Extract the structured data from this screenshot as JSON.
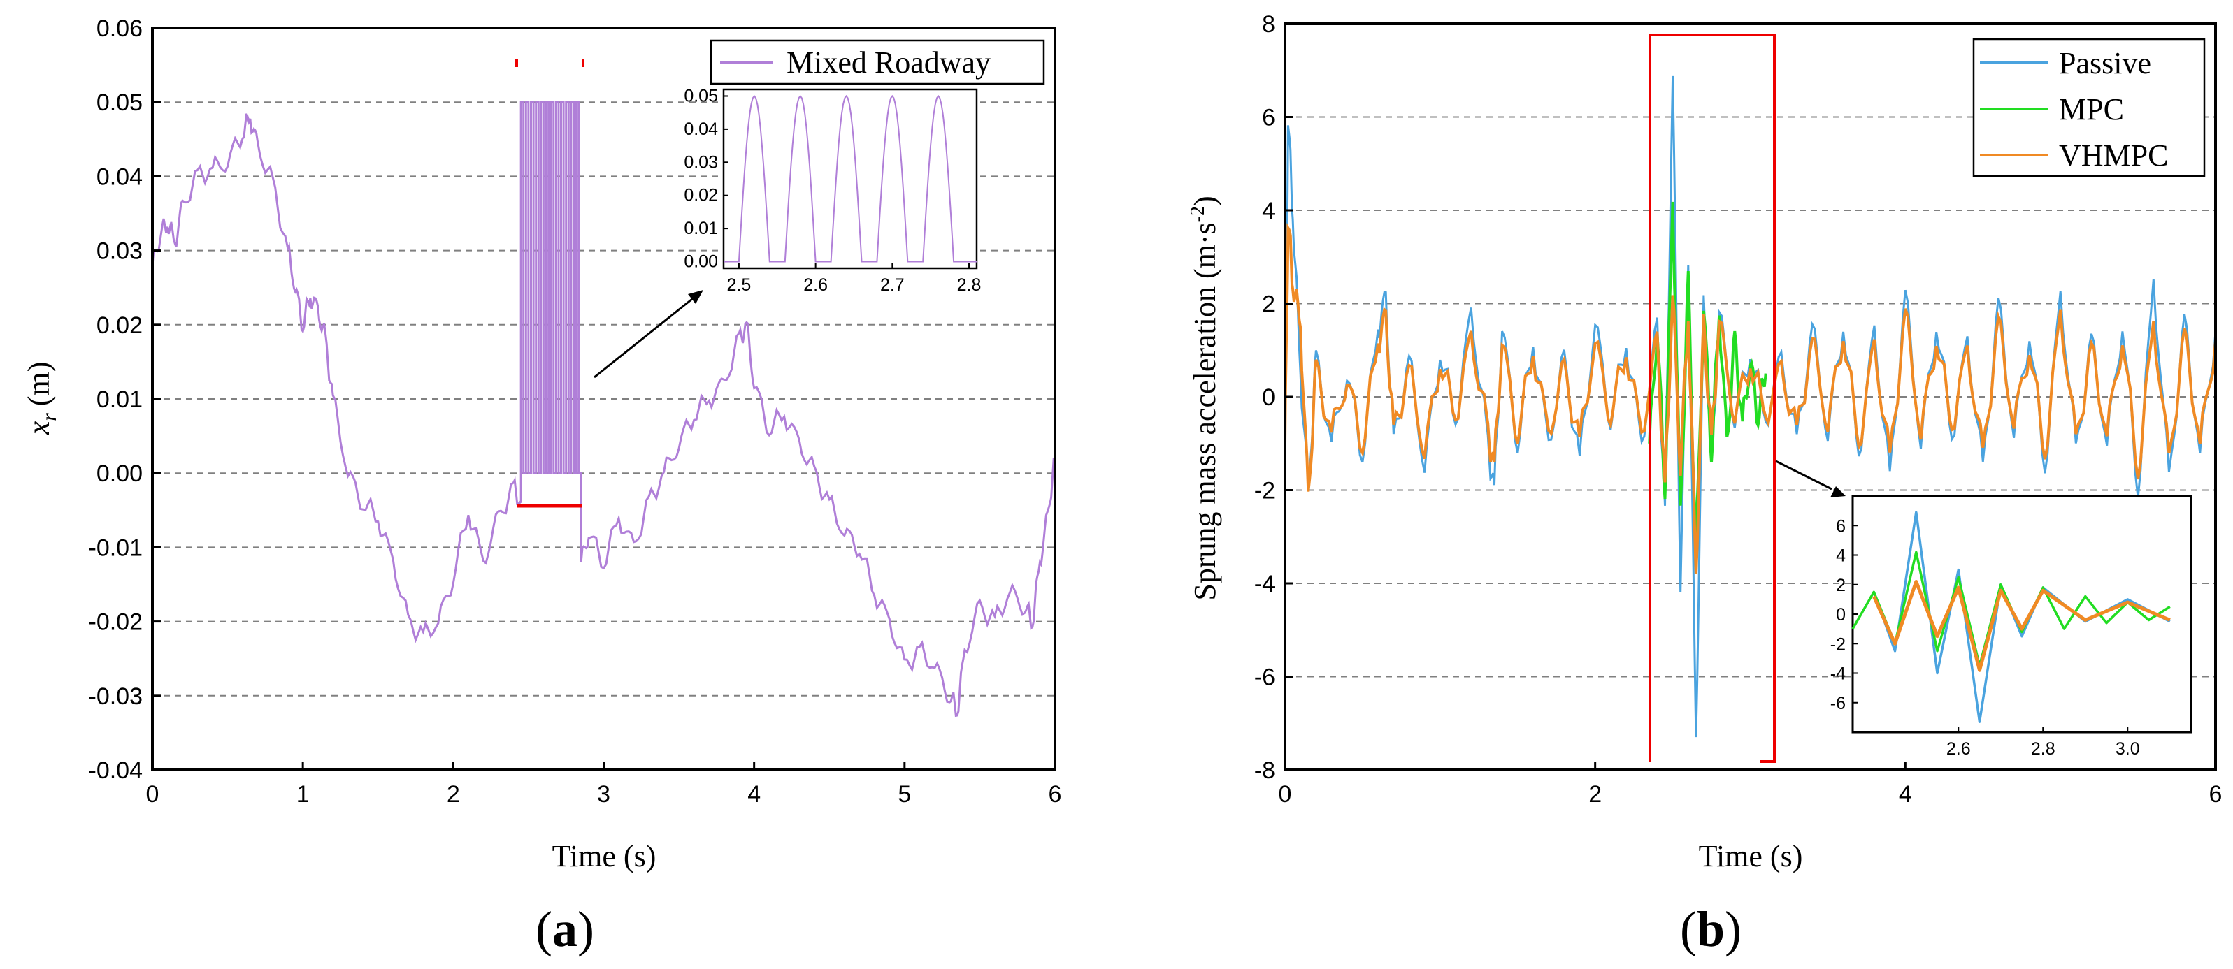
{
  "chart_data": [
    {
      "id": "a",
      "type": "line",
      "panel_label": "(a)",
      "panel_letter": "a",
      "xlabel": "Time (s)",
      "ylabel_main": "x",
      "ylabel_sub": "r",
      "ylabel_unit": "(m)",
      "xlim": [
        0,
        6
      ],
      "ylim": [
        -0.04,
        0.06
      ],
      "xticks": [
        "0",
        "1",
        "2",
        "3",
        "4",
        "5",
        "6"
      ],
      "yticks": [
        "-0.04",
        "-0.03",
        "-0.02",
        "-0.01",
        "0.00",
        "0.01",
        "0.02",
        "0.03",
        "0.04",
        "0.05",
        "0.06"
      ],
      "grid": "horizontal-dashed",
      "legend_position": "top-right",
      "series": [
        {
          "name": "Mixed Roadway",
          "color": "#b07fd8",
          "x": [
            0,
            0.05,
            0.1,
            0.15,
            0.2,
            0.3,
            0.4,
            0.5,
            0.6,
            0.65,
            0.7,
            0.8,
            0.9,
            0.95,
            1.0,
            1.05,
            1.1,
            1.15,
            1.2,
            1.3,
            1.4,
            1.5,
            1.6,
            1.7,
            1.8,
            1.9,
            2.0,
            2.1,
            2.2,
            2.3,
            2.4,
            2.45
          ],
          "y": [
            0.028,
            0.032,
            0.034,
            0.031,
            0.036,
            0.04,
            0.041,
            0.042,
            0.046,
            0.048,
            0.044,
            0.039,
            0.03,
            0.025,
            0.02,
            0.024,
            0.022,
            0.018,
            0.01,
            0.0,
            -0.004,
            -0.006,
            -0.012,
            -0.02,
            -0.022,
            -0.02,
            -0.014,
            -0.005,
            -0.012,
            -0.006,
            -0.002,
            -0.004
          ]
        }
      ],
      "series_continuation": {
        "x": [
          2.85,
          2.9,
          3.0,
          3.1,
          3.2,
          3.3,
          3.4,
          3.5,
          3.6,
          3.7,
          3.8,
          3.9,
          3.95,
          4.0,
          4.1,
          4.2,
          4.3,
          4.4,
          4.5,
          4.6,
          4.7,
          4.8,
          4.9,
          5.0,
          5.1,
          5.2,
          5.3,
          5.35,
          5.4,
          5.5,
          5.6,
          5.7,
          5.8,
          5.85,
          5.9,
          5.95,
          6.0
        ],
        "y": [
          -0.012,
          -0.008,
          -0.012,
          -0.006,
          -0.01,
          -0.004,
          0.0,
          0.004,
          0.008,
          0.01,
          0.012,
          0.018,
          0.02,
          0.012,
          0.006,
          0.008,
          0.004,
          0.0,
          -0.004,
          -0.008,
          -0.01,
          -0.016,
          -0.02,
          -0.026,
          -0.024,
          -0.026,
          -0.03,
          -0.032,
          -0.024,
          -0.018,
          -0.02,
          -0.016,
          -0.018,
          -0.02,
          -0.012,
          -0.006,
          0.002
        ]
      },
      "bumps": {
        "start": 2.5,
        "end": 2.8,
        "count": 5,
        "height": 0.05
      },
      "inset": {
        "xlim": [
          2.48,
          2.81
        ],
        "ylim": [
          -0.002,
          0.052
        ],
        "xticks": [
          "2.5",
          "2.6",
          "2.7",
          "2.8"
        ],
        "yticks": [
          "0.00",
          "0.01",
          "0.02",
          "0.03",
          "0.04",
          "0.05"
        ]
      }
    },
    {
      "id": "b",
      "type": "line",
      "panel_label": "(b)",
      "panel_letter": "b",
      "xlabel": "Time (s)",
      "ylabel_main": "Sprung mass acceleration (m·s",
      "ylabel_exp": "-2",
      "ylabel_close": ")",
      "xlim": [
        0,
        6
      ],
      "ylim": [
        -8,
        8
      ],
      "xticks": [
        "0",
        "2",
        "4",
        "6"
      ],
      "yticks": [
        "-8",
        "-6",
        "-4",
        "-2",
        "0",
        "2",
        "4",
        "6",
        "8"
      ],
      "grid": "horizontal-dashed",
      "legend_position": "top-right",
      "highlight_window": [
        2.35,
        3.1
      ],
      "series": [
        {
          "name": "Passive",
          "color": "#4aa3df",
          "x": [
            0,
            0.02,
            0.05,
            0.1,
            0.15,
            0.2,
            0.3,
            0.4,
            0.5,
            0.6,
            0.65,
            0.7,
            0.8,
            0.9,
            1.0,
            1.1,
            1.2,
            1.3,
            1.35,
            1.4,
            1.5,
            1.6,
            1.7,
            1.8,
            1.9,
            2.0,
            2.1,
            2.2,
            2.3,
            2.4,
            2.45,
            2.5,
            2.55,
            2.6,
            2.65,
            2.7,
            2.75,
            2.8,
            2.9,
            3.0,
            3.1,
            3.2,
            3.3,
            3.4,
            3.5,
            3.6,
            3.7,
            3.8,
            3.9,
            4.0,
            4.1,
            4.2,
            4.3,
            4.4,
            4.5,
            4.6,
            4.7,
            4.8,
            4.9,
            5.0,
            5.1,
            5.2,
            5.3,
            5.4,
            5.5,
            5.6,
            5.7,
            5.8,
            5.9,
            6.0
          ],
          "y": [
            -1.5,
            6.0,
            4.0,
            0.5,
            -2.0,
            0.8,
            -1.0,
            0.5,
            -1.2,
            1.5,
            2.1,
            -1.0,
            0.8,
            -1.5,
            1.0,
            -0.5,
            1.8,
            -0.8,
            -2.0,
            1.5,
            -1.0,
            1.2,
            -1.0,
            0.8,
            -1.4,
            1.6,
            -0.5,
            1.2,
            -1.0,
            1.5,
            -2.5,
            6.9,
            -4.0,
            3.0,
            -7.3,
            2.0,
            -1.5,
            1.8,
            -0.5,
            1.0,
            -0.5,
            0.8,
            -1.0,
            1.5,
            -0.8,
            1.6,
            -1.2,
            1.4,
            -1.8,
            2.2,
            -1.0,
            1.6,
            -0.8,
            1.2,
            -1.6,
            2.0,
            -0.8,
            1.4,
            -1.5,
            2.2,
            -1.2,
            1.2,
            -1.0,
            1.6,
            -2.0,
            2.5,
            -1.8,
            1.6,
            -1.2,
            1.4
          ]
        },
        {
          "name": "MPC",
          "color": "#22dd22",
          "x": [
            2.35,
            2.4,
            2.45,
            2.5,
            2.55,
            2.6,
            2.65,
            2.7,
            2.75,
            2.8,
            2.85,
            2.9,
            2.95,
            3.0,
            3.05,
            3.1
          ],
          "y": [
            -1.0,
            1.5,
            -2.0,
            4.2,
            -2.5,
            2.5,
            -3.5,
            2.0,
            -1.2,
            1.8,
            -1.0,
            1.2,
            -0.6,
            0.8,
            -0.4,
            0.5
          ]
        },
        {
          "name": "VHMPC",
          "color": "#f08a24",
          "x": [
            0,
            0.02,
            0.05,
            0.1,
            0.15,
            0.2,
            0.3,
            0.4,
            0.5,
            0.6,
            0.65,
            0.7,
            0.8,
            0.9,
            1.0,
            1.1,
            1.2,
            1.3,
            1.35,
            1.4,
            1.5,
            1.6,
            1.7,
            1.8,
            1.9,
            2.0,
            2.1,
            2.2,
            2.3,
            2.4,
            2.45,
            2.5,
            2.55,
            2.6,
            2.65,
            2.7,
            2.75,
            2.8,
            2.9,
            3.0,
            3.1,
            3.2,
            3.3,
            3.4,
            3.5,
            3.6,
            3.7,
            3.8,
            3.9,
            4.0,
            4.1,
            4.2,
            4.3,
            4.4,
            4.5,
            4.6,
            4.7,
            4.8,
            4.9,
            5.0,
            5.1,
            5.2,
            5.3,
            5.4,
            5.5,
            5.6,
            5.7,
            5.8,
            5.9,
            6.0
          ],
          "y": [
            -1.0,
            3.8,
            2.5,
            1.5,
            -2.2,
            0.6,
            -0.8,
            0.4,
            -1.0,
            1.2,
            1.7,
            -0.8,
            0.6,
            -1.2,
            0.8,
            -0.4,
            1.3,
            -0.6,
            -1.5,
            1.2,
            -0.8,
            1.0,
            -0.8,
            0.6,
            -1.0,
            1.2,
            -0.4,
            1.0,
            -0.8,
            1.2,
            -2.0,
            2.2,
            -1.5,
            1.8,
            -3.8,
            1.6,
            -1.0,
            1.6,
            -0.4,
            0.8,
            -0.4,
            0.6,
            -0.8,
            1.2,
            -0.6,
            1.4,
            -1.0,
            1.1,
            -1.4,
            1.8,
            -0.8,
            1.3,
            -0.6,
            1.0,
            -1.3,
            1.6,
            -0.6,
            1.1,
            -1.2,
            1.8,
            -1.0,
            1.0,
            -0.8,
            1.3,
            -1.6,
            1.6,
            -1.4,
            1.3,
            -1.0,
            1.2
          ]
        }
      ],
      "inset": {
        "xlim": [
          2.35,
          3.15
        ],
        "ylim": [
          -8,
          8
        ],
        "xticks": [
          "2.6",
          "2.8",
          "3.0"
        ],
        "yticks": [
          "-6",
          "-4",
          "-2",
          "0",
          "2",
          "4",
          "6"
        ]
      }
    }
  ]
}
